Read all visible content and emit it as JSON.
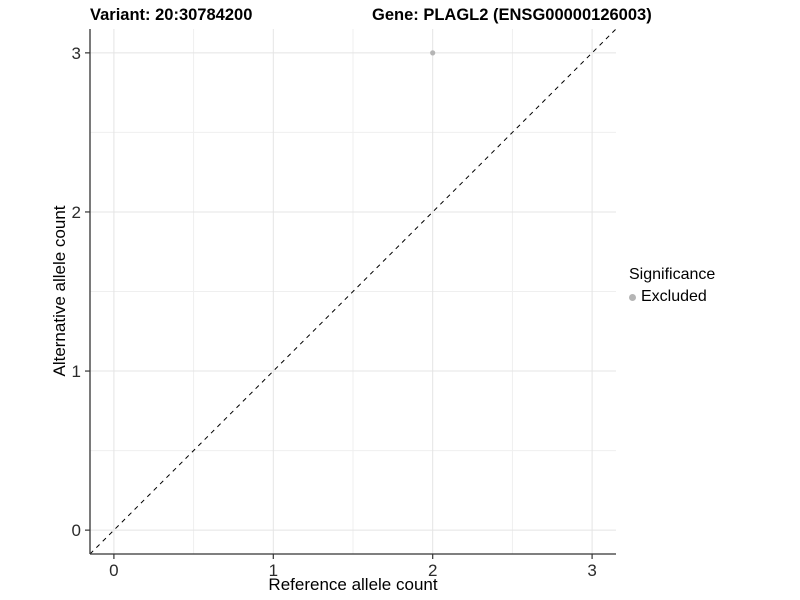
{
  "titles": {
    "variant": "Variant: 20:30784200",
    "gene": "Gene: PLAGL2 (ENSG00000126003)"
  },
  "chart_data": {
    "type": "scatter",
    "xlabel": "Reference allele count",
    "ylabel": "Alternative allele count",
    "xlim": [
      -0.15,
      3.15
    ],
    "ylim": [
      -0.15,
      3.15
    ],
    "xticks": [
      0,
      1,
      2,
      3
    ],
    "yticks": [
      0,
      1,
      2,
      3
    ],
    "minor_xticks": [
      0.5,
      1.5,
      2.5
    ],
    "minor_yticks": [
      0.5,
      1.5,
      2.5
    ],
    "grid": true,
    "series": [
      {
        "name": "Excluded",
        "color": "#b5b5b5",
        "points": [
          {
            "x": 2,
            "y": 3
          }
        ]
      }
    ],
    "annotations": [
      {
        "type": "abline",
        "slope": 1,
        "intercept": 0,
        "style": "dashed",
        "color": "#000000"
      }
    ],
    "legend": {
      "title": "Significance",
      "position": "right",
      "entries": [
        {
          "label": "Excluded",
          "color": "#b5b5b5",
          "marker": "circle"
        }
      ]
    }
  },
  "colors": {
    "axis_line": "#333333",
    "tick_mark": "#333333",
    "tick_label": "#2b2b2b",
    "grid_major": "#e4e4e4",
    "grid_minor": "#efefef",
    "background": "#ffffff"
  }
}
